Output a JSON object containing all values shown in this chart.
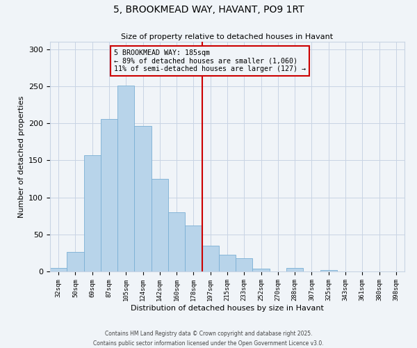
{
  "title": "5, BROOKMEAD WAY, HAVANT, PO9 1RT",
  "subtitle": "Size of property relative to detached houses in Havant",
  "xlabel": "Distribution of detached houses by size in Havant",
  "ylabel": "Number of detached properties",
  "categories": [
    "32sqm",
    "50sqm",
    "69sqm",
    "87sqm",
    "105sqm",
    "124sqm",
    "142sqm",
    "160sqm",
    "178sqm",
    "197sqm",
    "215sqm",
    "233sqm",
    "252sqm",
    "270sqm",
    "288sqm",
    "307sqm",
    "325sqm",
    "343sqm",
    "361sqm",
    "380sqm",
    "398sqm"
  ],
  "values": [
    5,
    26,
    157,
    206,
    251,
    196,
    125,
    80,
    62,
    35,
    23,
    18,
    4,
    0,
    5,
    0,
    2,
    0,
    0,
    0,
    0
  ],
  "bar_color": "#b8d4ea",
  "bar_edge_color": "#7aafd4",
  "property_line_label": "5 BROOKMEAD WAY: 185sqm",
  "annotation_line1": "← 89% of detached houses are smaller (1,060)",
  "annotation_line2": "11% of semi-detached houses are larger (127) →",
  "annotation_box_color": "#cc0000",
  "ylim": [
    0,
    310
  ],
  "yticks": [
    0,
    50,
    100,
    150,
    200,
    250,
    300
  ],
  "footer1": "Contains HM Land Registry data © Crown copyright and database right 2025.",
  "footer2": "Contains public sector information licensed under the Open Government Licence v3.0.",
  "background_color": "#f0f4f8",
  "grid_color": "#c8d4e4"
}
